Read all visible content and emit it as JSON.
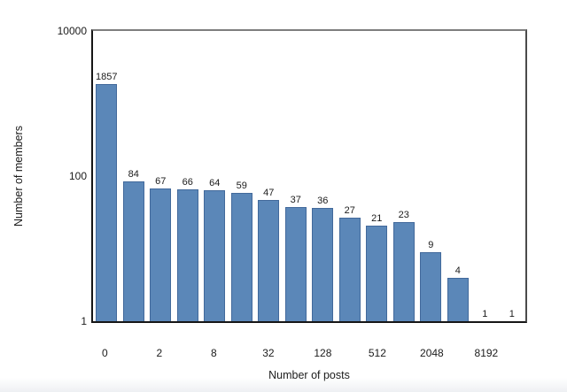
{
  "chart_data": {
    "type": "bar",
    "title": "",
    "xlabel": "Number of posts",
    "ylabel": "Number of members",
    "values": [
      1857,
      84,
      67,
      66,
      64,
      59,
      47,
      37,
      36,
      27,
      21,
      23,
      9,
      4,
      1,
      1
    ],
    "bar_labels": [
      "1857",
      "84",
      "67",
      "66",
      "64",
      "59",
      "47",
      "37",
      "36",
      "27",
      "21",
      "23",
      "9",
      "4",
      "1",
      "1"
    ],
    "x_tick_labels": [
      "0",
      "2",
      "8",
      "32",
      "128",
      "512",
      "2048",
      "8192"
    ],
    "x_tick_slots": [
      0,
      2,
      4,
      6,
      8,
      10,
      12,
      14
    ],
    "y_scale": "log",
    "y_ticks": [
      "1",
      "100",
      "10000"
    ],
    "ylim": [
      1,
      10000
    ],
    "bar_fill": "#5b87b8",
    "bar_border": "#42699b",
    "grid": false,
    "legend": "none"
  }
}
